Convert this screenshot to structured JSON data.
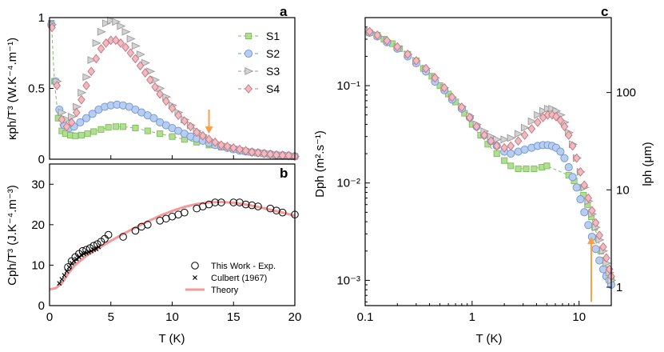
{
  "colors": {
    "S1": "#79c05a",
    "S2": "#6b96d6",
    "S3": "#9a9a9a",
    "S4": "#c9717d",
    "S1_fill": "#b4dc93",
    "S2_fill": "#b8cdf0",
    "S3_fill": "#d3d3d3",
    "S4_fill": "#ecbcc2",
    "theory": "#f49a9a",
    "arrow": "#f5a04a"
  },
  "chart_data": [
    {
      "panel": "a",
      "type": "scatter",
      "ylabel": "κph/T³ (W.K⁻⁴.m⁻¹)",
      "xlabel": "",
      "xlim": [
        0,
        20
      ],
      "ylim": [
        0,
        1
      ],
      "xticks": [
        0,
        5,
        10,
        15,
        20
      ],
      "yticks": [
        0,
        0.5,
        1
      ],
      "ytick_labels": [
        "0",
        "0.5",
        "1"
      ],
      "legend": [
        "S1",
        "S2",
        "S3",
        "S4"
      ],
      "arrow": {
        "x": 13,
        "y_from": 0.35,
        "y_to": 0.18
      },
      "series": [
        {
          "name": "S1",
          "marker": "square",
          "x": [
            0.15,
            0.4,
            0.7,
            1.0,
            1.3,
            1.7,
            2.1,
            2.6,
            3.1,
            3.6,
            4.2,
            4.8,
            5.4,
            6.0,
            7.0,
            8.0,
            9.0,
            10.0,
            11.0,
            12.0,
            13.0,
            14.0,
            15.0,
            16.0,
            17.0,
            18.0,
            19.0,
            20.0
          ],
          "y": [
            0.96,
            0.55,
            0.29,
            0.2,
            0.18,
            0.17,
            0.165,
            0.17,
            0.18,
            0.195,
            0.21,
            0.225,
            0.23,
            0.23,
            0.22,
            0.2,
            0.18,
            0.16,
            0.14,
            0.12,
            0.1,
            0.085,
            0.07,
            0.055,
            0.045,
            0.035,
            0.025,
            0.02
          ]
        },
        {
          "name": "S2",
          "marker": "circle",
          "x": [
            0.15,
            0.5,
            0.8,
            1.2,
            1.6,
            2.0,
            2.5,
            3.0,
            3.5,
            4.0,
            4.5,
            5.0,
            5.5,
            6.0,
            6.5,
            7.0,
            7.5,
            8.0,
            8.5,
            9.0,
            9.5,
            10.0,
            10.5,
            11.0,
            11.5,
            12.0,
            12.5,
            13.0,
            13.5,
            14.0,
            14.5,
            15.0,
            15.5,
            16.0,
            16.5,
            17.0,
            17.5,
            18.0,
            18.5,
            19.0,
            19.5,
            20.0
          ],
          "y": [
            0.95,
            0.55,
            0.35,
            0.24,
            0.22,
            0.23,
            0.26,
            0.29,
            0.32,
            0.35,
            0.37,
            0.38,
            0.385,
            0.38,
            0.37,
            0.35,
            0.33,
            0.31,
            0.29,
            0.26,
            0.24,
            0.22,
            0.2,
            0.18,
            0.16,
            0.145,
            0.13,
            0.115,
            0.1,
            0.09,
            0.08,
            0.07,
            0.06,
            0.055,
            0.05,
            0.045,
            0.04,
            0.035,
            0.03,
            0.028,
            0.025,
            0.02
          ]
        },
        {
          "name": "S3",
          "marker": "triangle",
          "x": [
            0.2,
            0.6,
            1.0,
            1.4,
            1.8,
            2.2,
            2.6,
            3.0,
            3.4,
            3.8,
            4.2,
            4.6,
            5.0,
            5.4,
            5.8,
            6.2,
            6.6,
            7.0,
            7.4,
            7.8,
            8.2,
            8.6,
            9.0,
            9.5,
            10.0,
            10.5,
            11.0,
            11.5,
            12.0,
            12.5,
            13.0,
            13.5,
            14.0,
            14.5,
            15.0,
            15.5,
            16.0,
            16.5,
            17.0,
            17.5,
            18.0,
            18.5,
            19.0,
            19.5,
            20.0
          ],
          "y": [
            0.95,
            0.55,
            0.33,
            0.28,
            0.3,
            0.37,
            0.47,
            0.58,
            0.7,
            0.82,
            0.9,
            0.96,
            0.98,
            0.97,
            0.94,
            0.9,
            0.85,
            0.8,
            0.74,
            0.68,
            0.62,
            0.56,
            0.5,
            0.44,
            0.38,
            0.33,
            0.28,
            0.24,
            0.2,
            0.17,
            0.14,
            0.12,
            0.1,
            0.09,
            0.08,
            0.07,
            0.06,
            0.05,
            0.045,
            0.04,
            0.035,
            0.03,
            0.027,
            0.025,
            0.02
          ]
        },
        {
          "name": "S4",
          "marker": "diamond",
          "x": [
            0.2,
            0.6,
            1.0,
            1.4,
            1.8,
            2.2,
            2.6,
            3.0,
            3.4,
            3.8,
            4.2,
            4.6,
            5.0,
            5.4,
            5.8,
            6.2,
            6.6,
            7.0,
            7.4,
            7.8,
            8.2,
            8.6,
            9.0,
            9.5,
            10.0,
            10.5,
            11.0,
            11.5,
            12.0,
            12.5,
            13.0,
            13.5,
            14.0,
            14.5,
            15.0,
            15.5,
            16.0,
            16.5,
            17.0,
            17.5,
            18.0,
            18.5,
            19.0,
            19.5,
            20.0
          ],
          "y": [
            0.93,
            0.52,
            0.28,
            0.23,
            0.26,
            0.33,
            0.42,
            0.52,
            0.62,
            0.71,
            0.78,
            0.82,
            0.84,
            0.84,
            0.82,
            0.79,
            0.75,
            0.71,
            0.66,
            0.61,
            0.56,
            0.51,
            0.46,
            0.41,
            0.36,
            0.31,
            0.27,
            0.23,
            0.19,
            0.165,
            0.14,
            0.12,
            0.1,
            0.09,
            0.08,
            0.07,
            0.06,
            0.05,
            0.045,
            0.04,
            0.035,
            0.03,
            0.027,
            0.025,
            0.02
          ]
        }
      ]
    },
    {
      "panel": "b",
      "type": "scatter",
      "ylabel": "Cph/T³ (J.K⁻⁴.m⁻³)",
      "xlabel": "T (K)",
      "xlim": [
        0,
        20
      ],
      "ylim": [
        0,
        35
      ],
      "xticks": [
        0,
        5,
        10,
        15,
        20
      ],
      "yticks": [
        0,
        10,
        20,
        30
      ],
      "legend": [
        "This Work - Exp.",
        "Culbert (1967)",
        "Theory"
      ],
      "series": [
        {
          "name": "This Work - Exp.",
          "marker": "open-circle",
          "x": [
            1.5,
            1.8,
            2.1,
            2.4,
            2.7,
            3.0,
            3.3,
            3.6,
            3.9,
            4.2,
            4.5,
            4.8,
            6.0,
            7.0,
            7.5,
            8.0,
            9.0,
            9.5,
            10.0,
            10.5,
            11.0,
            12.0,
            12.5,
            13.0,
            13.5,
            14.0,
            15.0,
            15.5,
            16.0,
            16.5,
            17.0,
            18.0,
            18.5,
            19.0,
            20.0
          ],
          "y": [
            9.5,
            11.0,
            12.0,
            12.8,
            13.5,
            13.8,
            14.2,
            14.8,
            15.2,
            15.8,
            16.5,
            17.5,
            17.0,
            18.5,
            19.5,
            20.0,
            21.0,
            21.5,
            22.0,
            22.5,
            23.0,
            24.0,
            24.5,
            25.0,
            25.5,
            25.5,
            25.5,
            25.5,
            25.0,
            24.8,
            24.5,
            24.0,
            23.5,
            23.0,
            22.5
          ]
        },
        {
          "name": "Culbert (1967)",
          "marker": "x",
          "x": [
            0.8,
            1.0,
            1.2,
            1.4,
            1.6,
            1.8,
            2.0,
            2.2,
            2.4,
            2.6,
            2.8,
            3.0,
            3.2,
            3.4,
            3.6,
            3.8,
            4.0
          ],
          "y": [
            5.5,
            6.5,
            7.5,
            8.5,
            9.5,
            10.5,
            11.0,
            11.5,
            12.0,
            12.5,
            12.8,
            13.0,
            13.2,
            13.5,
            13.8,
            14.0,
            14.5
          ]
        },
        {
          "name": "Theory",
          "marker": "line",
          "x": [
            0,
            0.5,
            1,
            1.5,
            2,
            3,
            4,
            5,
            6,
            7,
            8,
            9,
            10,
            11,
            12,
            13,
            14,
            15,
            16,
            17,
            18,
            19,
            20
          ],
          "y": [
            4,
            4.3,
            5.5,
            7.8,
            9.8,
            12.3,
            14.2,
            16,
            17.7,
            19.3,
            20.8,
            22.2,
            23.4,
            24.4,
            25.1,
            25.5,
            25.6,
            25.4,
            25,
            24.4,
            23.7,
            23,
            22.2
          ]
        }
      ]
    },
    {
      "panel": "c",
      "type": "scatter",
      "scale": "log-log",
      "ylabel": "Dph (m².s⁻¹)",
      "ylabel_right": "lph (μm)",
      "xlabel": "T (K)",
      "xlim": [
        0.1,
        20
      ],
      "ylim": [
        0.00055,
        0.5
      ],
      "xticks": [
        0.1,
        1,
        10
      ],
      "xtick_labels": [
        "0.1",
        "1",
        "10"
      ],
      "yticks": [
        0.001,
        0.01,
        0.1
      ],
      "ytick_labels": [
        "10⁻³",
        "10⁻²",
        "10⁻¹"
      ],
      "right_ticks": {
        "values_D": [
          0.00085,
          0.0085,
          0.085
        ],
        "labels": [
          "1",
          "10",
          "100"
        ]
      },
      "arrow": {
        "x": 13,
        "y_from": 0.0006,
        "y_to": 0.0028
      },
      "series": [
        {
          "name": "S1",
          "marker": "square",
          "x": [
            0.11,
            0.13,
            0.15,
            0.18,
            0.21,
            0.25,
            0.3,
            0.35,
            0.42,
            0.5,
            0.6,
            0.7,
            0.85,
            1.0,
            1.2,
            1.4,
            1.7,
            2.0,
            2.3,
            2.7,
            3.2,
            3.8,
            4.5,
            5.0,
            8.0,
            9.0,
            10.0,
            11.0,
            12.0,
            13.0,
            14.0,
            15.0,
            16.0,
            17.0,
            18.0,
            19.0,
            20.0
          ],
          "y": [
            0.35,
            0.33,
            0.3,
            0.27,
            0.24,
            0.21,
            0.18,
            0.15,
            0.125,
            0.1,
            0.082,
            0.068,
            0.052,
            0.04,
            0.031,
            0.025,
            0.02,
            0.017,
            0.015,
            0.014,
            0.014,
            0.014,
            0.0145,
            0.015,
            0.012,
            0.0105,
            0.009,
            0.0075,
            0.006,
            0.0045,
            0.0035,
            0.0027,
            0.002,
            0.0016,
            0.0013,
            0.0011,
            0.001
          ]
        },
        {
          "name": "S2",
          "marker": "circle",
          "x": [
            0.11,
            0.13,
            0.16,
            0.2,
            0.25,
            0.3,
            0.37,
            0.45,
            0.55,
            0.65,
            0.8,
            0.95,
            1.1,
            1.3,
            1.5,
            1.7,
            2.0,
            2.3,
            2.7,
            3.1,
            3.6,
            4.1,
            4.6,
            5.1,
            5.6,
            6.1,
            6.7,
            7.3,
            8.0,
            8.7,
            9.5,
            10.3,
            11.2,
            12.2,
            13.2,
            14.3,
            15.5,
            16.8,
            18.0,
            19.2,
            20.0
          ],
          "y": [
            0.35,
            0.32,
            0.28,
            0.24,
            0.2,
            0.17,
            0.14,
            0.11,
            0.09,
            0.072,
            0.058,
            0.047,
            0.038,
            0.031,
            0.027,
            0.024,
            0.021,
            0.02,
            0.021,
            0.022,
            0.023,
            0.024,
            0.0245,
            0.0245,
            0.024,
            0.023,
            0.021,
            0.018,
            0.0145,
            0.0115,
            0.009,
            0.0068,
            0.005,
            0.0037,
            0.0028,
            0.0021,
            0.0016,
            0.0013,
            0.0011,
            0.001,
            0.0009
          ]
        },
        {
          "name": "S3",
          "marker": "triangle",
          "x": [
            0.11,
            0.13,
            0.16,
            0.2,
            0.25,
            0.3,
            0.37,
            0.45,
            0.55,
            0.65,
            0.8,
            0.95,
            1.1,
            1.3,
            1.5,
            1.7,
            2.0,
            2.3,
            2.7,
            3.1,
            3.6,
            4.1,
            4.6,
            5.1,
            5.6,
            6.1,
            6.7,
            7.3,
            8.0,
            8.7,
            9.5,
            10.3,
            11.2,
            12.2,
            13.2,
            14.3,
            15.5,
            16.8,
            18.0,
            19.2,
            20.0
          ],
          "y": [
            0.36,
            0.33,
            0.29,
            0.25,
            0.21,
            0.18,
            0.15,
            0.12,
            0.095,
            0.076,
            0.061,
            0.049,
            0.04,
            0.034,
            0.03,
            0.028,
            0.028,
            0.029,
            0.032,
            0.037,
            0.043,
            0.05,
            0.055,
            0.058,
            0.058,
            0.055,
            0.05,
            0.042,
            0.033,
            0.025,
            0.018,
            0.013,
            0.009,
            0.0065,
            0.0048,
            0.0035,
            0.0026,
            0.002,
            0.0015,
            0.0012,
            0.001
          ]
        },
        {
          "name": "S4",
          "marker": "diamond",
          "x": [
            0.11,
            0.13,
            0.16,
            0.2,
            0.25,
            0.3,
            0.37,
            0.45,
            0.55,
            0.65,
            0.8,
            0.95,
            1.1,
            1.3,
            1.5,
            1.7,
            2.0,
            2.3,
            2.7,
            3.1,
            3.6,
            4.1,
            4.6,
            5.1,
            5.6,
            6.1,
            6.7,
            7.3,
            8.0,
            8.7,
            9.5,
            10.3,
            11.2,
            12.2,
            13.2,
            14.3,
            15.5,
            16.8,
            18.0,
            19.2,
            20.0
          ],
          "y": [
            0.36,
            0.33,
            0.29,
            0.25,
            0.21,
            0.18,
            0.15,
            0.12,
            0.095,
            0.076,
            0.06,
            0.047,
            0.038,
            0.031,
            0.027,
            0.024,
            0.023,
            0.024,
            0.027,
            0.031,
            0.036,
            0.042,
            0.047,
            0.05,
            0.05,
            0.048,
            0.044,
            0.038,
            0.031,
            0.024,
            0.018,
            0.013,
            0.0095,
            0.007,
            0.0052,
            0.0039,
            0.0029,
            0.0022,
            0.0017,
            0.0013,
            0.0011
          ]
        }
      ]
    }
  ],
  "labels": {
    "panel_a": "a",
    "panel_b": "b",
    "panel_c": "c"
  }
}
